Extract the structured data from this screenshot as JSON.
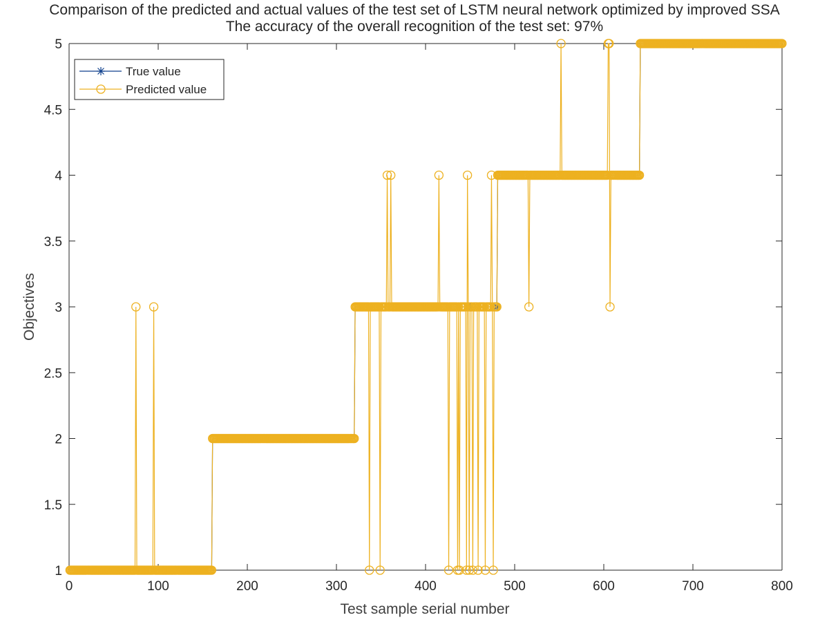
{
  "chart_data": {
    "type": "line",
    "title": "Comparison of the predicted and actual values of the test set of LSTM neural network optimized by improved SSA",
    "subtitle": "The accuracy of the overall recognition of the test set: 97%",
    "xlabel": "Test sample serial number",
    "ylabel": "Objectives",
    "xlim": [
      0,
      800
    ],
    "ylim": [
      1,
      5
    ],
    "xticks": [
      "0",
      "100",
      "200",
      "300",
      "400",
      "500",
      "600",
      "700",
      "800"
    ],
    "yticks": [
      "1",
      "1.5",
      "2",
      "2.5",
      "3",
      "3.5",
      "4",
      "4.5",
      "5"
    ],
    "grid": false,
    "legend_position": "top-left",
    "series": [
      {
        "name": "True value",
        "color": "#0E3F8C",
        "marker": "asterisk",
        "segments": [
          {
            "x_start": 1,
            "x_end": 160,
            "value": 1
          },
          {
            "x_start": 161,
            "x_end": 320,
            "value": 2
          },
          {
            "x_start": 321,
            "x_end": 480,
            "value": 3
          },
          {
            "x_start": 481,
            "x_end": 640,
            "value": 4
          },
          {
            "x_start": 641,
            "x_end": 800,
            "value": 5
          }
        ]
      },
      {
        "name": "Predicted value",
        "color": "#EDB120",
        "marker": "circle",
        "outliers": [
          {
            "x": 75,
            "y": 3
          },
          {
            "x": 95,
            "y": 3
          },
          {
            "x": 337,
            "y": 1
          },
          {
            "x": 349,
            "y": 1
          },
          {
            "x": 357,
            "y": 4
          },
          {
            "x": 361,
            "y": 4
          },
          {
            "x": 415,
            "y": 4
          },
          {
            "x": 426,
            "y": 1
          },
          {
            "x": 436,
            "y": 1
          },
          {
            "x": 438,
            "y": 1
          },
          {
            "x": 446,
            "y": 1
          },
          {
            "x": 447,
            "y": 4
          },
          {
            "x": 449,
            "y": 1
          },
          {
            "x": 453,
            "y": 1
          },
          {
            "x": 459,
            "y": 1
          },
          {
            "x": 467,
            "y": 1
          },
          {
            "x": 474,
            "y": 4
          },
          {
            "x": 476,
            "y": 1
          },
          {
            "x": 516,
            "y": 3
          },
          {
            "x": 552,
            "y": 5
          },
          {
            "x": 605,
            "y": 5
          },
          {
            "x": 606,
            "y": 5
          },
          {
            "x": 607,
            "y": 3
          }
        ]
      }
    ]
  }
}
